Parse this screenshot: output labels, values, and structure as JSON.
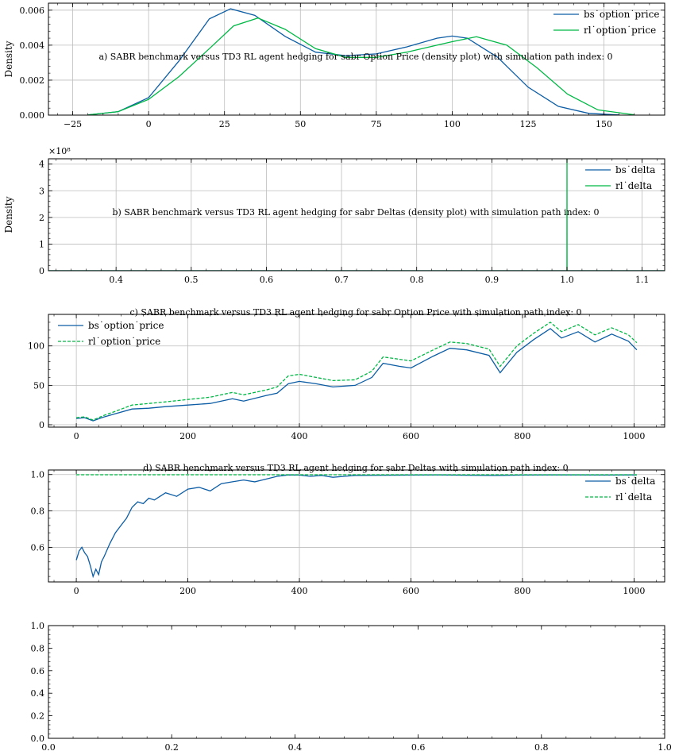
{
  "colors": {
    "bs": "#0C5DA5",
    "rl": "#00B945",
    "grid": "#bdbdbd",
    "axis": "#000000"
  },
  "chart_data": [
    {
      "id": "a",
      "type": "line",
      "title": "a) SABR benchmark versus TD3 RL agent hedging for sabr Option Price (density plot) with simulation path index: 0",
      "xlabel": "",
      "ylabel": "Density",
      "xlim": [
        -33,
        170
      ],
      "ylim": [
        0,
        0.0064
      ],
      "xticks": [
        -25,
        0,
        25,
        50,
        75,
        100,
        125,
        150
      ],
      "xtick_labels": [
        "−25",
        "0",
        "25",
        "50",
        "75",
        "100",
        "125",
        "150"
      ],
      "yticks": [
        0,
        0.002,
        0.004,
        0.006
      ],
      "ytick_labels": [
        "0.000",
        "0.002",
        "0.004",
        "0.006"
      ],
      "grid": true,
      "legend": "top-right",
      "series": [
        {
          "name": "bs˙option˙price",
          "color_key": "bs",
          "style": "solid",
          "x": [
            -20,
            -10,
            0,
            10,
            20,
            27,
            35,
            45,
            55,
            65,
            75,
            85,
            95,
            100,
            105,
            115,
            125,
            135,
            145,
            155
          ],
          "y": [
            1e-05,
            0.0002,
            0.001,
            0.0031,
            0.0055,
            0.00608,
            0.0057,
            0.0045,
            0.0036,
            0.0034,
            0.0035,
            0.0039,
            0.0044,
            0.00452,
            0.0044,
            0.0033,
            0.0016,
            0.0005,
            0.0001,
            1e-05
          ]
        },
        {
          "name": "rl˙option˙price",
          "color_key": "rl",
          "style": "solid",
          "x": [
            -20,
            -10,
            0,
            10,
            20,
            28,
            36,
            45,
            55,
            65,
            75,
            85,
            95,
            100,
            108,
            118,
            128,
            138,
            148,
            160
          ],
          "y": [
            1e-05,
            0.0002,
            0.0009,
            0.0022,
            0.0038,
            0.0051,
            0.00555,
            0.0049,
            0.0038,
            0.0033,
            0.0033,
            0.0036,
            0.004,
            0.0042,
            0.00448,
            0.004,
            0.0027,
            0.0012,
            0.0003,
            2e-05
          ]
        }
      ]
    },
    {
      "id": "b",
      "type": "line",
      "title": "b) SABR benchmark versus TD3 RL agent hedging for sabr Deltas (density plot) with simulation path index: 0",
      "xlabel": "",
      "ylabel": "Density",
      "y_multiplier": "×10⁸",
      "xlim": [
        0.31,
        1.13
      ],
      "ylim": [
        0,
        4.2
      ],
      "xticks": [
        0.4,
        0.5,
        0.6,
        0.7,
        0.8,
        0.9,
        1.0,
        1.1
      ],
      "xtick_labels": [
        "0.4",
        "0.5",
        "0.6",
        "0.7",
        "0.8",
        "0.9",
        "1.0",
        "1.1"
      ],
      "yticks": [
        0,
        1,
        2,
        3,
        4
      ],
      "ytick_labels": [
        "0",
        "1",
        "2",
        "3",
        "4"
      ],
      "grid": true,
      "legend": "top-right",
      "series": [
        {
          "name": "bs˙delta",
          "color_key": "bs",
          "style": "solid",
          "x": [
            0.31,
            1.13
          ],
          "y": [
            0,
            0
          ]
        },
        {
          "name": "rl˙delta",
          "color_key": "rl",
          "style": "solid",
          "x": [
            0.31,
            0.9999,
            1.0,
            1.0001,
            1.13
          ],
          "y": [
            0,
            0,
            4.2,
            0,
            0
          ]
        }
      ]
    },
    {
      "id": "c",
      "type": "line",
      "title": "c) SABR benchmark versus TD3 RL agent hedging for sabr Option Price with simulation path index: 0",
      "xlabel": "",
      "ylabel": "",
      "xlim": [
        -50,
        1055
      ],
      "ylim": [
        -3,
        140
      ],
      "xticks": [
        0,
        200,
        400,
        600,
        800,
        1000
      ],
      "xtick_labels": [
        "0",
        "200",
        "400",
        "600",
        "800",
        "1000"
      ],
      "yticks": [
        0,
        50,
        100
      ],
      "ytick_labels": [
        "0",
        "50",
        "100"
      ],
      "grid": true,
      "legend": "top-left",
      "series": [
        {
          "name": "bs˙option˙price",
          "color_key": "bs",
          "style": "solid",
          "x": [
            0,
            15,
            30,
            50,
            70,
            100,
            130,
            160,
            200,
            240,
            280,
            300,
            340,
            360,
            380,
            400,
            430,
            460,
            500,
            530,
            550,
            580,
            600,
            640,
            670,
            700,
            740,
            760,
            790,
            820,
            850,
            870,
            900,
            930,
            960,
            990,
            1005
          ],
          "y": [
            8,
            9,
            5,
            10,
            14,
            20,
            21,
            23,
            25,
            27,
            33,
            30,
            37,
            40,
            52,
            55,
            52,
            48,
            50,
            60,
            78,
            74,
            72,
            87,
            97,
            95,
            88,
            66,
            92,
            108,
            122,
            110,
            118,
            105,
            115,
            106,
            95
          ]
        },
        {
          "name": "rl˙option˙price",
          "color_key": "rl",
          "style": "dashed",
          "x": [
            0,
            15,
            30,
            50,
            70,
            100,
            130,
            160,
            200,
            240,
            280,
            300,
            340,
            360,
            380,
            400,
            430,
            460,
            500,
            530,
            550,
            580,
            600,
            640,
            670,
            700,
            740,
            760,
            790,
            820,
            850,
            870,
            900,
            930,
            960,
            990,
            1005
          ],
          "y": [
            9,
            10,
            6,
            12,
            17,
            25,
            27,
            29,
            32,
            35,
            41,
            38,
            44,
            48,
            62,
            64,
            60,
            56,
            57,
            68,
            86,
            83,
            81,
            95,
            105,
            103,
            96,
            74,
            100,
            116,
            130,
            118,
            127,
            114,
            123,
            114,
            104
          ]
        }
      ]
    },
    {
      "id": "d",
      "type": "line",
      "title": "d) SABR benchmark versus TD3 RL agent hedging for sabr Deltas with simulation path index: 0",
      "xlabel": "",
      "ylabel": "",
      "xlim": [
        -50,
        1055
      ],
      "ylim": [
        0.41,
        1.025
      ],
      "xticks": [
        0,
        200,
        400,
        600,
        800,
        1000
      ],
      "xtick_labels": [
        "0",
        "200",
        "400",
        "600",
        "800",
        "1000"
      ],
      "yticks": [
        0.6,
        0.8,
        1.0
      ],
      "ytick_labels": [
        "0.6",
        "0.8",
        "1.0"
      ],
      "grid": true,
      "legend": "top-right",
      "series": [
        {
          "name": "bs˙delta",
          "color_key": "bs",
          "style": "solid",
          "x": [
            0,
            5,
            10,
            15,
            20,
            25,
            30,
            35,
            40,
            45,
            50,
            60,
            70,
            80,
            90,
            100,
            110,
            120,
            130,
            140,
            150,
            160,
            180,
            200,
            220,
            240,
            260,
            280,
            300,
            320,
            340,
            360,
            380,
            400,
            420,
            440,
            460,
            480,
            500,
            550,
            600,
            650,
            700,
            750,
            800,
            850,
            900,
            950,
            1000,
            1005
          ],
          "y": [
            0.53,
            0.58,
            0.6,
            0.57,
            0.55,
            0.5,
            0.44,
            0.48,
            0.45,
            0.52,
            0.55,
            0.62,
            0.68,
            0.72,
            0.76,
            0.82,
            0.85,
            0.84,
            0.87,
            0.86,
            0.88,
            0.9,
            0.88,
            0.92,
            0.93,
            0.91,
            0.95,
            0.96,
            0.97,
            0.96,
            0.975,
            0.99,
            0.998,
            0.997,
            0.99,
            0.995,
            0.985,
            0.99,
            0.995,
            0.996,
            0.997,
            0.998,
            0.996,
            0.995,
            0.997,
            0.998,
            0.998,
            0.997,
            0.998,
            0.998
          ]
        },
        {
          "name": "rl˙delta",
          "color_key": "rl",
          "style": "dashed",
          "x": [
            0,
            1005
          ],
          "y": [
            0.999,
            0.999
          ]
        }
      ]
    },
    {
      "id": "e",
      "type": "line",
      "title": "",
      "xlabel": "",
      "ylabel": "",
      "xlim": [
        0,
        1
      ],
      "ylim": [
        0,
        1
      ],
      "xticks": [
        0,
        0.2,
        0.4,
        0.6,
        0.8,
        1.0
      ],
      "xtick_labels": [
        "0.0",
        "0.2",
        "0.4",
        "0.6",
        "0.8",
        "1.0"
      ],
      "yticks": [
        0,
        0.2,
        0.4,
        0.6,
        0.8,
        1.0
      ],
      "ytick_labels": [
        "0.0",
        "0.2",
        "0.4",
        "0.6",
        "0.8",
        "1.0"
      ],
      "grid": false,
      "legend": "none",
      "series": []
    }
  ]
}
